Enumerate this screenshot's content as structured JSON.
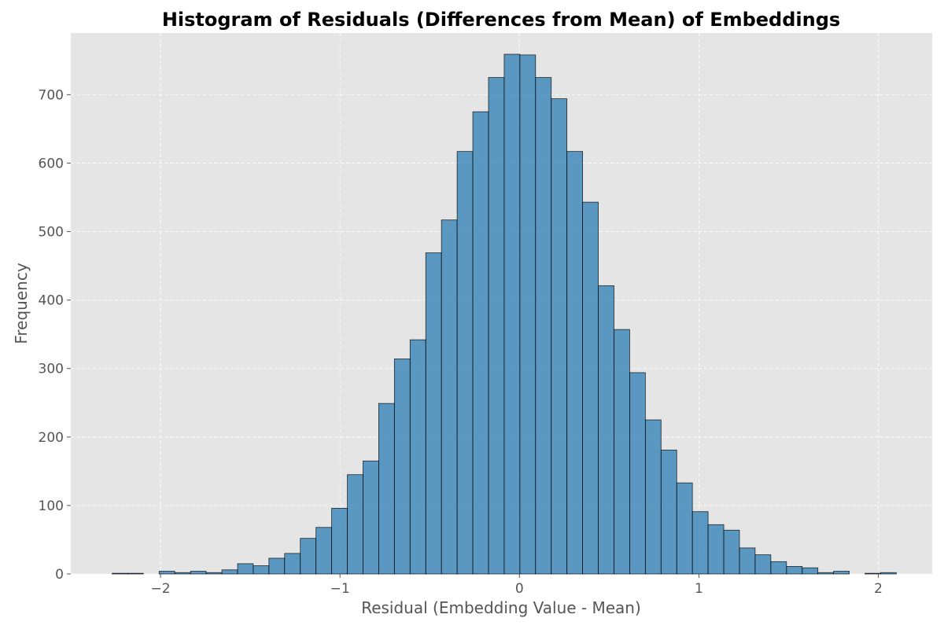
{
  "chart_data": {
    "type": "bar",
    "title": "Histogram of Residuals (Differences from Mean) of Embeddings",
    "xlabel": "Residual (Embedding Value - Mean)",
    "ylabel": "Frequency",
    "xlim": [
      -2.5,
      2.3
    ],
    "ylim": [
      0,
      790
    ],
    "xticks": [
      -2,
      -1,
      0,
      1,
      2
    ],
    "xtick_labels": [
      "−2",
      "−1",
      "0",
      "1",
      "2"
    ],
    "yticks": [
      0,
      100,
      200,
      300,
      400,
      500,
      600,
      700
    ],
    "grid": true,
    "bin_start": -2.27,
    "bin_width": 0.0874,
    "values": [
      1,
      1,
      0,
      4,
      2,
      4,
      2,
      6,
      15,
      12,
      23,
      30,
      52,
      68,
      96,
      145,
      165,
      249,
      314,
      342,
      469,
      517,
      617,
      675,
      725,
      759,
      758,
      725,
      694,
      617,
      543,
      421,
      357,
      294,
      225,
      181,
      133,
      91,
      72,
      64,
      38,
      28,
      18,
      11,
      9,
      2,
      4,
      0,
      1,
      2
    ]
  }
}
